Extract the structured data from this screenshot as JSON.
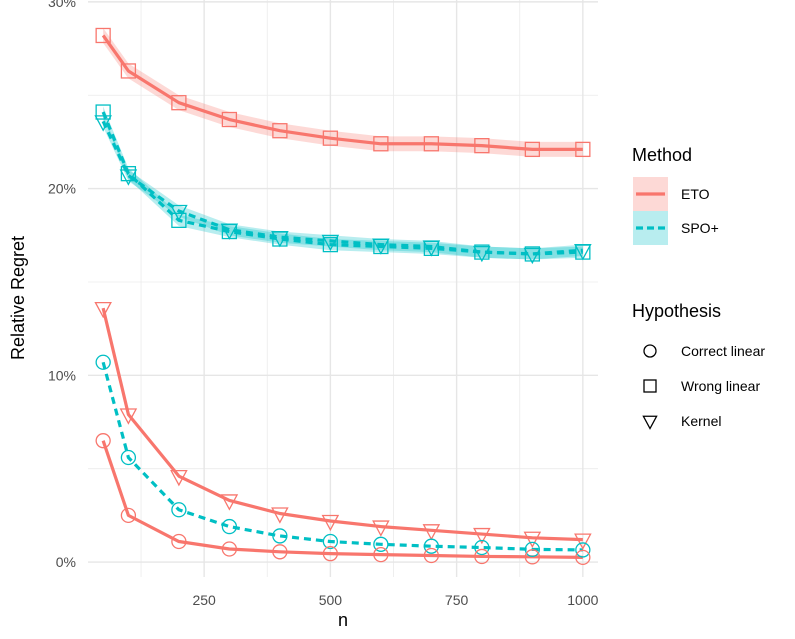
{
  "chart_data": {
    "type": "line",
    "xlabel": "n",
    "ylabel": "Relative Regret",
    "xlim": [
      20,
      1030
    ],
    "ylim": [
      -0.008,
      0.301
    ],
    "x_ticks": [
      {
        "value": 250,
        "label": "250"
      },
      {
        "value": 500,
        "label": "500"
      },
      {
        "value": 750,
        "label": "750"
      },
      {
        "value": 1000,
        "label": "1000"
      }
    ],
    "y_ticks": [
      {
        "value": 0.0,
        "label": "0%"
      },
      {
        "value": 0.1,
        "label": "10%"
      },
      {
        "value": 0.2,
        "label": "20%"
      },
      {
        "value": 0.3,
        "label": "30%"
      }
    ],
    "grid": true,
    "x": [
      50,
      100,
      200,
      300,
      400,
      500,
      600,
      700,
      800,
      900,
      1000
    ],
    "series": [
      {
        "method": "ETO",
        "hypothesis": "Wrong linear",
        "values": [
          0.282,
          0.263,
          0.246,
          0.237,
          0.231,
          0.227,
          0.224,
          0.224,
          0.223,
          0.221,
          0.221
        ],
        "band": 0.004
      },
      {
        "method": "SPO+",
        "hypothesis": "Wrong linear",
        "values": [
          0.241,
          0.208,
          0.183,
          0.177,
          0.173,
          0.17,
          0.169,
          0.168,
          0.166,
          0.165,
          0.166
        ],
        "band": 0.003
      },
      {
        "method": "SPO+",
        "hypothesis": "Kernel",
        "values": [
          0.236,
          0.207,
          0.188,
          0.178,
          0.174,
          0.172,
          0.17,
          0.169,
          0.166,
          0.165,
          0.167
        ],
        "band": 0.003
      },
      {
        "method": "ETO",
        "hypothesis": "Kernel",
        "values": [
          0.136,
          0.079,
          0.046,
          0.033,
          0.026,
          0.022,
          0.019,
          0.017,
          0.015,
          0.013,
          0.012
        ],
        "band": 0.0
      },
      {
        "method": "SPO+",
        "hypothesis": "Correct linear",
        "values": [
          0.107,
          0.056,
          0.028,
          0.019,
          0.014,
          0.011,
          0.0095,
          0.0085,
          0.0078,
          0.0068,
          0.0065
        ],
        "band": 0.0
      },
      {
        "method": "ETO",
        "hypothesis": "Correct linear",
        "values": [
          0.065,
          0.025,
          0.011,
          0.007,
          0.0055,
          0.0045,
          0.004,
          0.0035,
          0.003,
          0.0028,
          0.0025
        ],
        "band": 0.0
      }
    ],
    "legend": {
      "position": "right",
      "method_title": "Method",
      "methods": [
        {
          "name": "ETO",
          "color": "#f8766d",
          "band_color": "#f8766d",
          "linetype": "solid"
        },
        {
          "name": "SPO+",
          "color": "#00bfc4",
          "band_color": "#00bfc4",
          "linetype": "dashed"
        }
      ],
      "hypothesis_title": "Hypothesis",
      "hypotheses": [
        {
          "name": "Correct linear",
          "shape": "circle"
        },
        {
          "name": "Wrong linear",
          "shape": "square"
        },
        {
          "name": "Kernel",
          "shape": "triangle-down"
        }
      ]
    }
  }
}
